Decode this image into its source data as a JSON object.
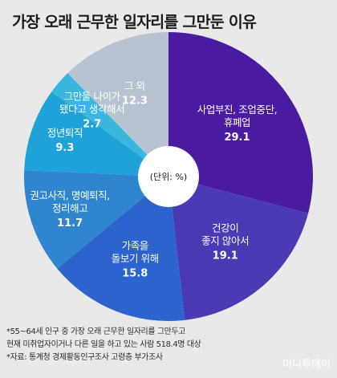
{
  "title": "가장 오래 근무한 일자리를 그만둔 이유",
  "center_label": "(단위: %)",
  "footnotes": [
    "*55~64세 인구 중 가장 오래 근무한 일자리를 그만두고",
    "현재 미취업자이거나 다른 일을 하고 있는 사람 518.4명 대상",
    "*자료: 통계청 경제활동인구조사 고령층 부가조사"
  ],
  "watermark": "머니투데이",
  "chart_data": {
    "type": "pie",
    "unit": "%",
    "slices": [
      {
        "label": [
          "사업부진, 조업중단,",
          "휴폐업"
        ],
        "value": 29.1,
        "color": "#4a1ba0"
      },
      {
        "label": [
          "건강이",
          "좋지 않아서"
        ],
        "value": 19.1,
        "color": "#4a3bb4"
      },
      {
        "label": [
          "가족을",
          "돌보기 위해"
        ],
        "value": 15.8,
        "color": "#2c63cc"
      },
      {
        "label": [
          "권고사직, 명예퇴직,",
          "정리해고"
        ],
        "value": 11.7,
        "color": "#2f86cf"
      },
      {
        "label": [
          "정년퇴직"
        ],
        "value": 9.3,
        "color": "#1fa2d8"
      },
      {
        "label": [
          "그만둘 나이가",
          "됐다고 생각해서"
        ],
        "value": 2.7,
        "color": "#39b7df"
      },
      {
        "label": [
          "그 외"
        ],
        "value": 12.3,
        "color": "#b7c3d1"
      }
    ]
  }
}
